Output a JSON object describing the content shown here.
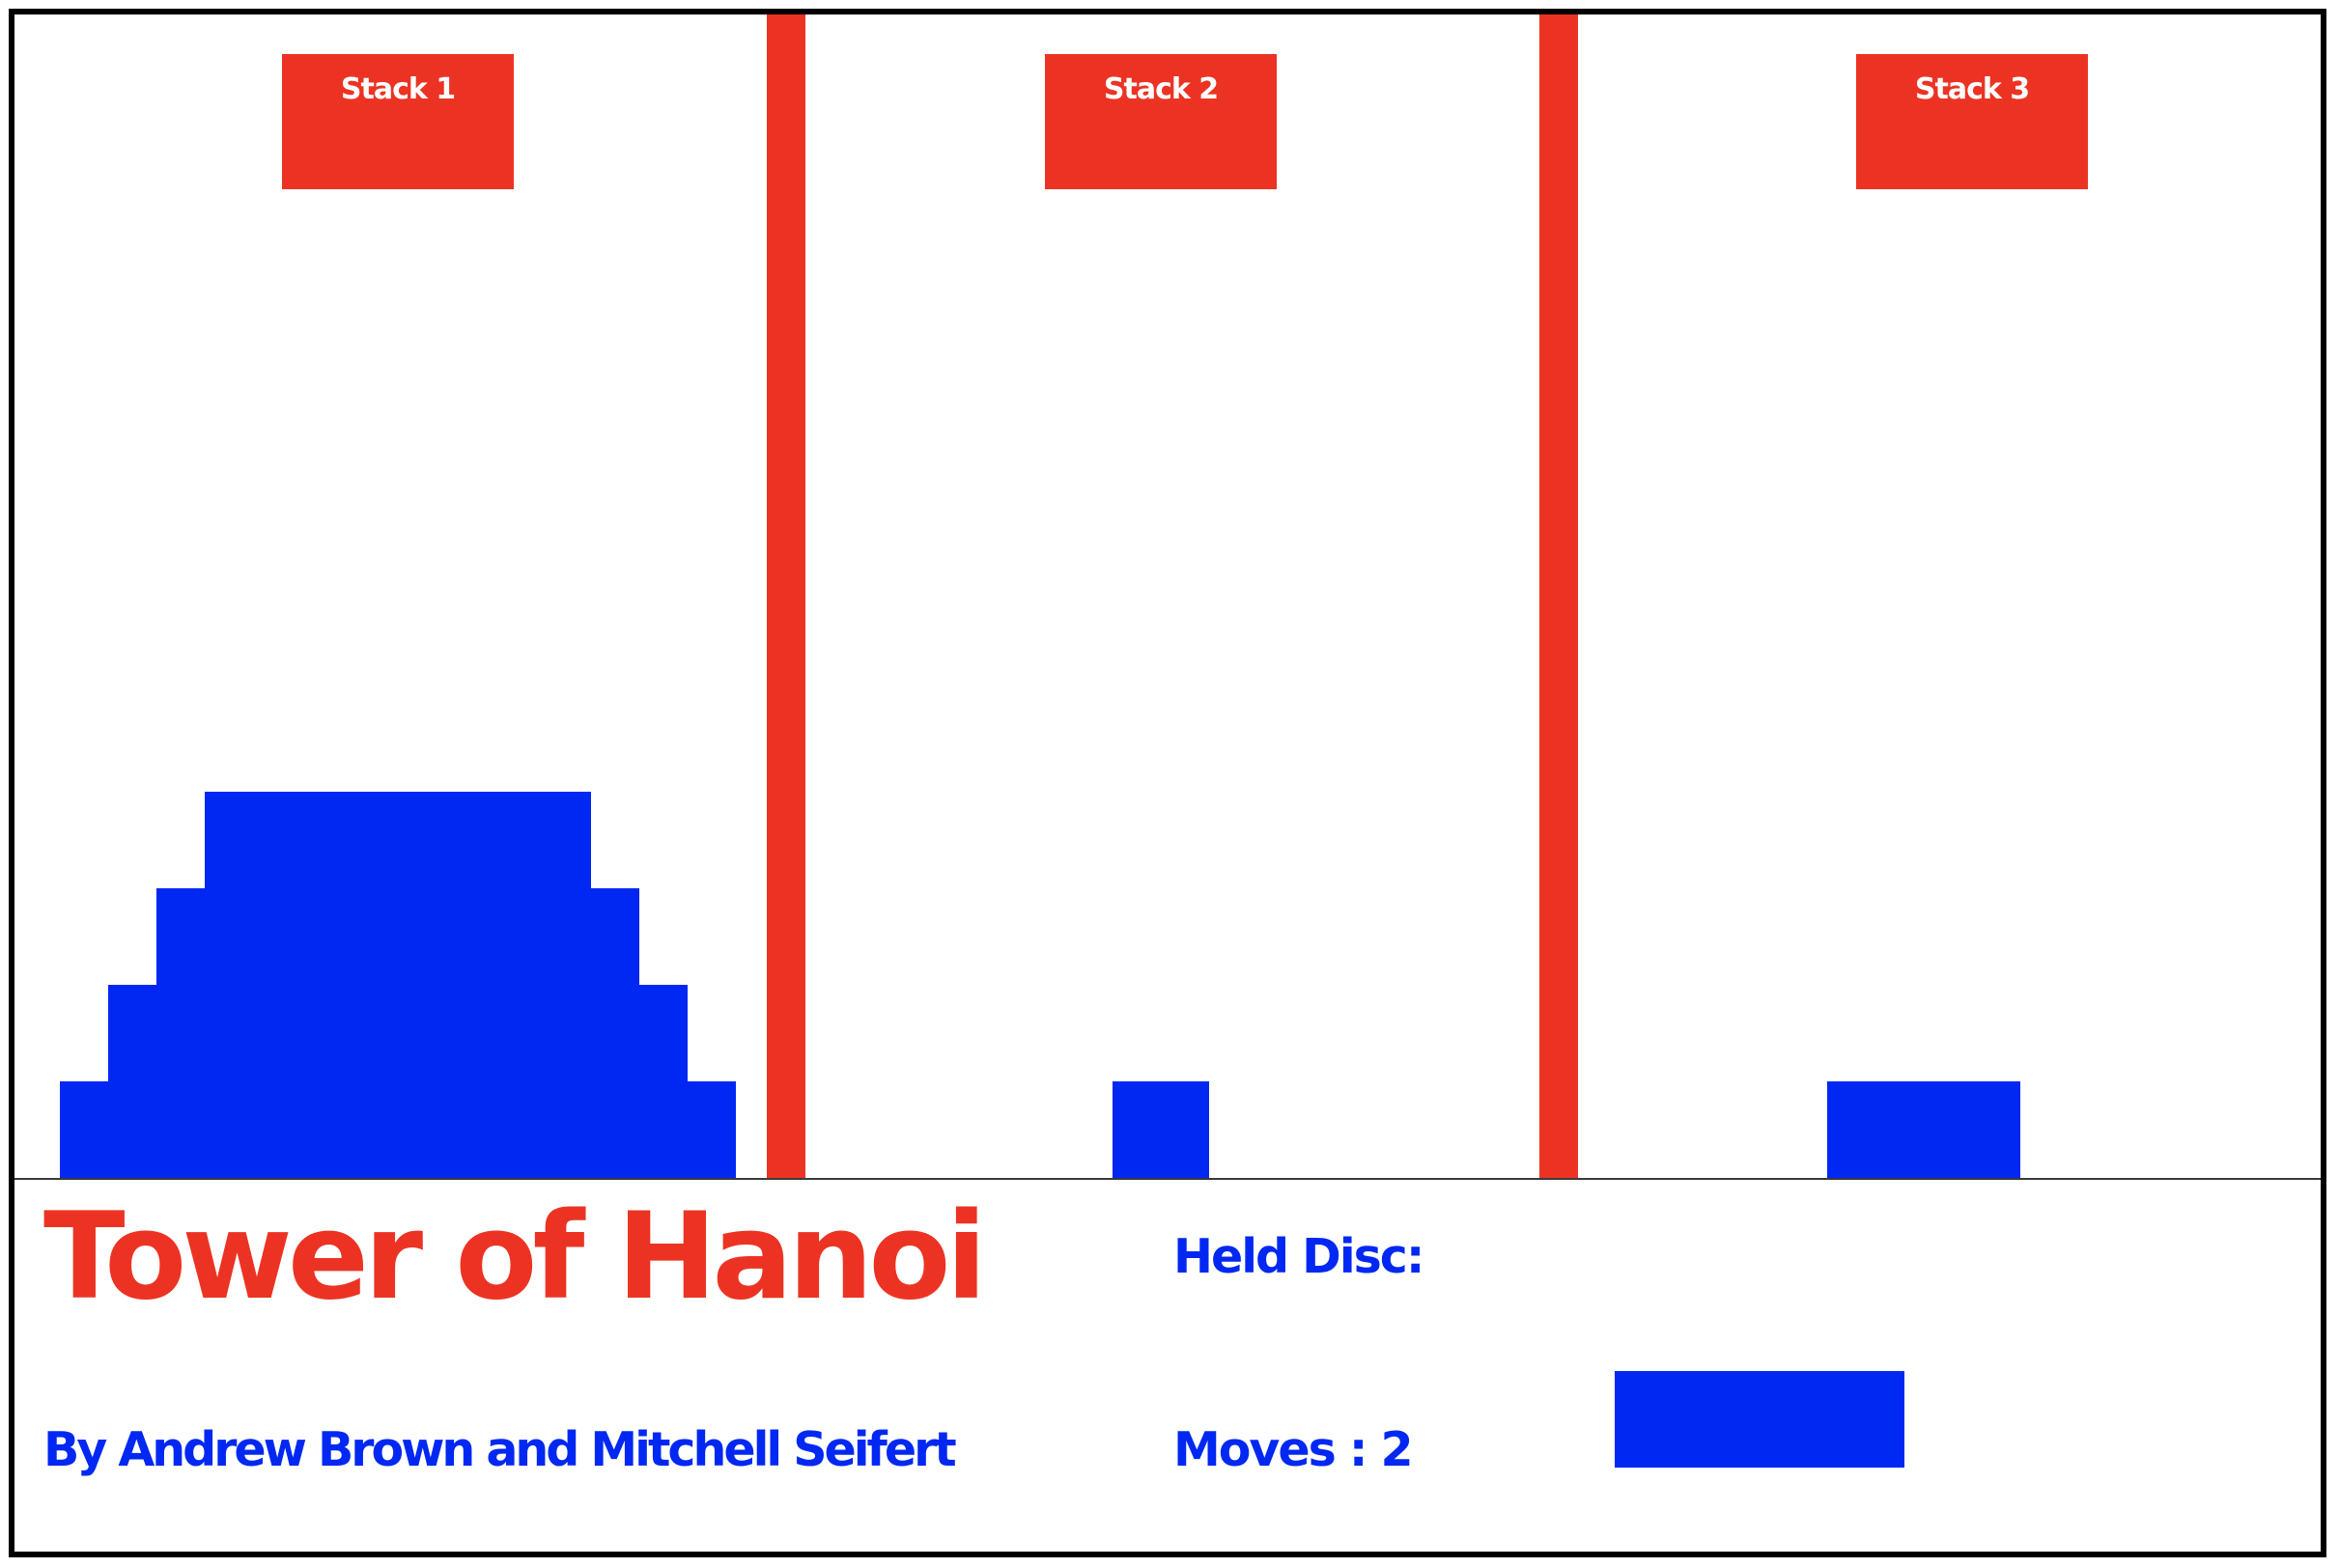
{
  "game": {
    "title": "Tower of Hanoi",
    "credits": "By Andrew Brown and Mitchell Seifert",
    "held_disc_label": "Held Disc:",
    "moves_label": "Moves :",
    "moves_value": "2",
    "moves_text": "Moves : 2"
  },
  "stacks": [
    {
      "label": "Stack 1",
      "disc_sizes_bottom_to_top": [
        7,
        6,
        5,
        4
      ]
    },
    {
      "label": "Stack 2",
      "disc_sizes_bottom_to_top": [
        1
      ]
    },
    {
      "label": "Stack 3",
      "disc_sizes_bottom_to_top": [
        2
      ]
    }
  ],
  "held_disc_size": 3,
  "colors": {
    "accent_red": "#ec3323",
    "disc_blue": "#0028f2",
    "background": "#ffffff",
    "border": "#000000"
  }
}
